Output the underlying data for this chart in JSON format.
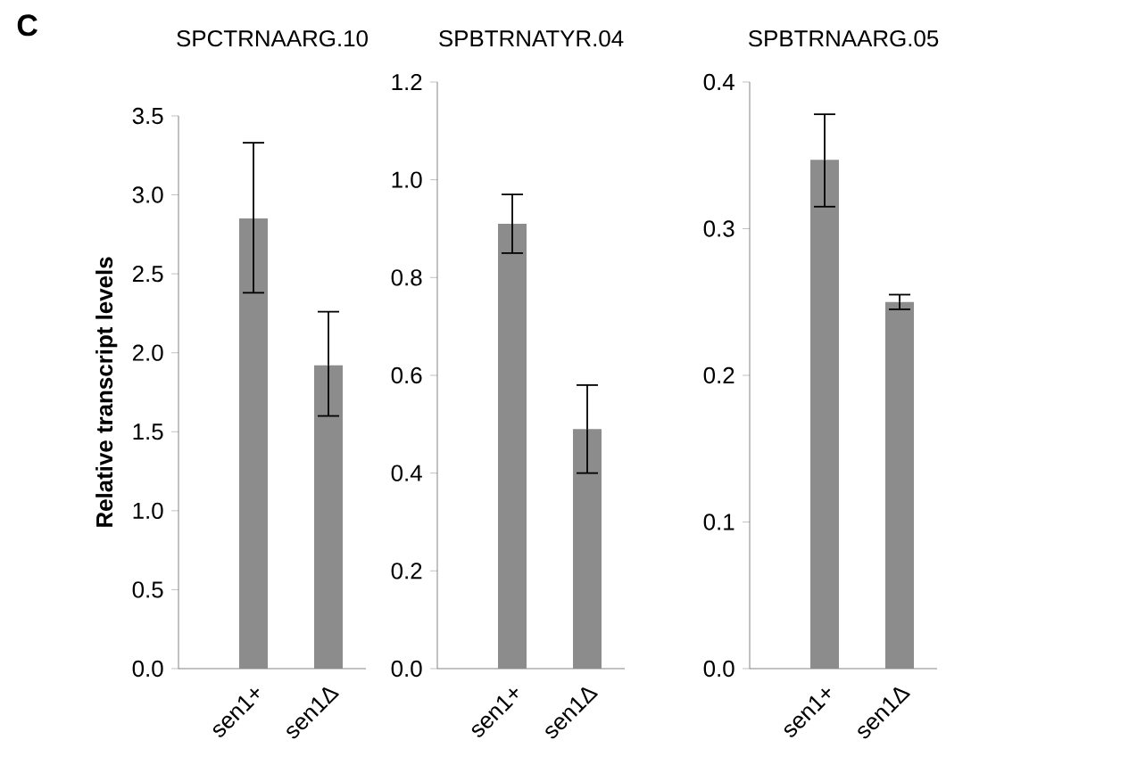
{
  "chart_data": [
    {
      "type": "bar",
      "title": "SPCTRNAARG.10",
      "ylabel": "Relative transcript levels",
      "annotations": [
        "**C**"
      ],
      "categories": [
        "sen1+",
        "sen1Δ"
      ],
      "values": [
        2.85,
        1.92
      ],
      "errors": [
        [
          2.38,
          3.33
        ],
        [
          1.6,
          2.26
        ]
      ],
      "color": "#8c8c8c",
      "ylim": [
        0,
        3.5
      ],
      "yticks": [
        {
          "value": 0,
          "label": "0.0"
        },
        {
          "value": 0.5,
          "label": "0.5"
        },
        {
          "value": 1,
          "label": "1.0"
        },
        {
          "value": 1.5,
          "label": "1.5"
        },
        {
          "value": 2,
          "label": "2.0"
        },
        {
          "value": 2.5,
          "label": "2.5"
        },
        {
          "value": 3,
          "label": "3.0"
        },
        {
          "value": 3.5,
          "label": "3.5"
        }
      ]
    },
    {
      "type": "bar",
      "title": "SPBTRNATYR.04",
      "categories": [
        "sen1+",
        "sen1Δ"
      ],
      "values": [
        0.91,
        0.49
      ],
      "errors": [
        [
          0.85,
          0.97
        ],
        [
          0.4,
          0.58
        ]
      ],
      "color": "#8c8c8c",
      "ylim": [
        0,
        1.2
      ],
      "yticks": [
        {
          "value": 0,
          "label": "0.0"
        },
        {
          "value": 0.2,
          "label": "0.2"
        },
        {
          "value": 0.4,
          "label": "0.4"
        },
        {
          "value": 0.6,
          "label": "0.6"
        },
        {
          "value": 0.8,
          "label": "0.8"
        },
        {
          "value": 1,
          "label": "1.0"
        },
        {
          "value": 1.2,
          "label": "1.2"
        }
      ]
    },
    {
      "type": "bar",
      "title": "SPBTRNAARG.05",
      "categories": [
        "sen1+",
        "sen1Δ"
      ],
      "values": [
        0.347,
        0.25
      ],
      "errors": [
        [
          0.315,
          0.378
        ],
        [
          0.245,
          0.255
        ]
      ],
      "color": "#8c8c8c",
      "ylim": [
        0,
        0.4
      ],
      "yticks": [
        {
          "value": 0,
          "label": "0.0"
        },
        {
          "value": 0.1,
          "label": "0.1"
        },
        {
          "value": 0.2,
          "label": "0.2"
        },
        {
          "value": 0.3,
          "label": "0.3"
        },
        {
          "value": 0.4,
          "label": "0.4"
        }
      ]
    }
  ]
}
